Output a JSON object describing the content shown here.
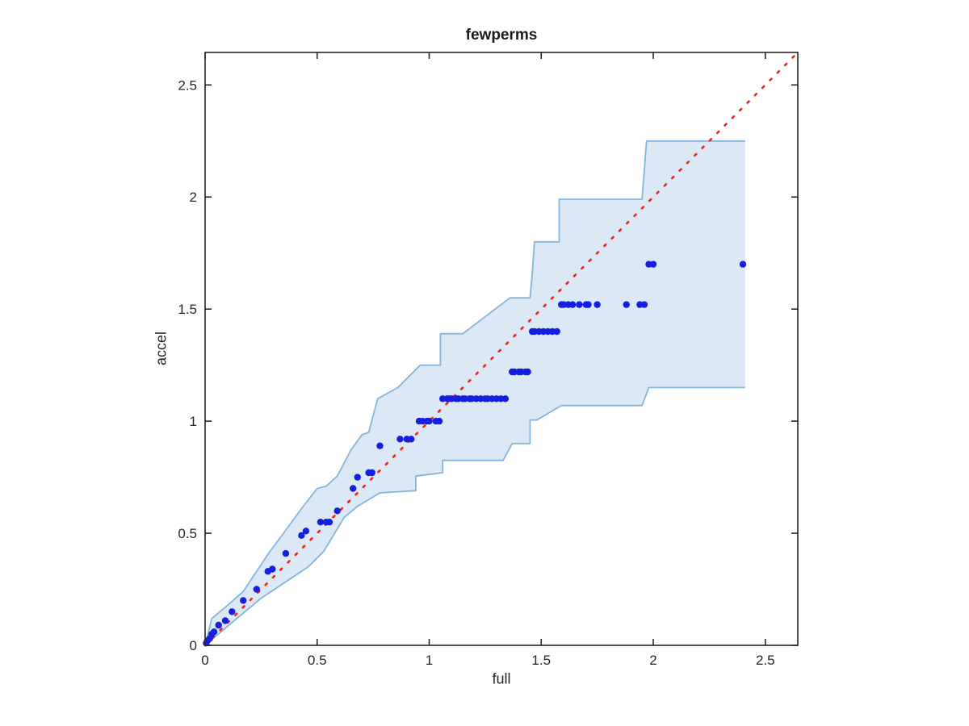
{
  "figure": {
    "title": "fewperms",
    "xlabel": "full",
    "ylabel": "accel"
  },
  "chart_data": {
    "type": "scatter",
    "title": "fewperms",
    "xlabel": "full",
    "ylabel": "accel",
    "xlim": [
      0,
      2.645
    ],
    "ylim": [
      0,
      2.645
    ],
    "xticks": [
      0,
      0.5,
      1,
      1.5,
      2,
      2.5
    ],
    "xtick_labels": [
      "0",
      "0.5",
      "1",
      "1.5",
      "2",
      "2.5"
    ],
    "yticks": [
      0,
      0.5,
      1,
      1.5,
      2,
      2.5
    ],
    "ytick_labels": [
      "0",
      "0.5",
      "1",
      "1.5",
      "2",
      "2.5"
    ],
    "grid": false,
    "legend": null,
    "colors": {
      "scatter": "#1420dd",
      "reference_line": "#f52015",
      "band_fill": "#dbe8f5",
      "band_edge": "#85b5d9",
      "axis": "#262626",
      "text": "#262626",
      "background": "#ffffff"
    },
    "reference_line": {
      "description": "identity line y = x, red dotted",
      "style": "dotted",
      "from": [
        0,
        0
      ],
      "to": [
        2.645,
        2.645
      ]
    },
    "band": {
      "description": "stepped light-blue confidence region around identity line",
      "upper": [
        [
          0,
          0
        ],
        [
          0.03,
          0.12
        ],
        [
          0.09,
          0.17
        ],
        [
          0.17,
          0.24
        ],
        [
          0.23,
          0.33
        ],
        [
          0.29,
          0.42
        ],
        [
          0.35,
          0.5
        ],
        [
          0.43,
          0.61
        ],
        [
          0.5,
          0.7
        ],
        [
          0.54,
          0.71
        ],
        [
          0.59,
          0.755
        ],
        [
          0.65,
          0.87
        ],
        [
          0.7,
          0.94
        ],
        [
          0.73,
          0.95
        ],
        [
          0.77,
          1.1
        ],
        [
          0.86,
          1.15
        ],
        [
          0.96,
          1.25
        ],
        [
          1.05,
          1.25
        ],
        [
          1.05,
          1.39
        ],
        [
          1.15,
          1.39
        ],
        [
          1.36,
          1.55
        ],
        [
          1.45,
          1.55
        ],
        [
          1.46,
          1.66
        ],
        [
          1.47,
          1.8
        ],
        [
          1.58,
          1.8
        ],
        [
          1.58,
          1.99
        ],
        [
          1.95,
          1.99
        ],
        [
          1.97,
          2.25
        ],
        [
          2.41,
          2.25
        ]
      ],
      "lower": [
        [
          0,
          0
        ],
        [
          0.13,
          0.11
        ],
        [
          0.25,
          0.21
        ],
        [
          0.37,
          0.29
        ],
        [
          0.46,
          0.35
        ],
        [
          0.53,
          0.42
        ],
        [
          0.62,
          0.57
        ],
        [
          0.68,
          0.62
        ],
        [
          0.78,
          0.68
        ],
        [
          0.94,
          0.69
        ],
        [
          0.94,
          0.755
        ],
        [
          1.06,
          0.77
        ],
        [
          1.06,
          0.825
        ],
        [
          1.33,
          0.825
        ],
        [
          1.37,
          0.9
        ],
        [
          1.45,
          0.9
        ],
        [
          1.45,
          1.005
        ],
        [
          1.48,
          1.005
        ],
        [
          1.59,
          1.07
        ],
        [
          1.95,
          1.07
        ],
        [
          1.98,
          1.15
        ],
        [
          2.41,
          1.15
        ]
      ]
    },
    "series": [
      {
        "name": "accel vs full",
        "marker": "dot",
        "points": [
          [
            0.005,
            0.01
          ],
          [
            0.01,
            0.02
          ],
          [
            0.02,
            0.03
          ],
          [
            0.03,
            0.05
          ],
          [
            0.04,
            0.06
          ],
          [
            0.06,
            0.09
          ],
          [
            0.09,
            0.11
          ],
          [
            0.12,
            0.15
          ],
          [
            0.17,
            0.2
          ],
          [
            0.23,
            0.25
          ],
          [
            0.28,
            0.33
          ],
          [
            0.3,
            0.34
          ],
          [
            0.36,
            0.41
          ],
          [
            0.43,
            0.49
          ],
          [
            0.45,
            0.51
          ],
          [
            0.515,
            0.55
          ],
          [
            0.54,
            0.55
          ],
          [
            0.555,
            0.55
          ],
          [
            0.59,
            0.6
          ],
          [
            0.66,
            0.7
          ],
          [
            0.68,
            0.75
          ],
          [
            0.73,
            0.77
          ],
          [
            0.745,
            0.77
          ],
          [
            0.78,
            0.89
          ],
          [
            0.87,
            0.92
          ],
          [
            0.9,
            0.92
          ],
          [
            0.92,
            0.92
          ],
          [
            0.955,
            1.0
          ],
          [
            0.97,
            1.0
          ],
          [
            0.99,
            1.0
          ],
          [
            1.0,
            1.0
          ],
          [
            1.03,
            1.0
          ],
          [
            1.045,
            1.0
          ],
          [
            1.06,
            1.1
          ],
          [
            1.08,
            1.1
          ],
          [
            1.09,
            1.1
          ],
          [
            1.1,
            1.1
          ],
          [
            1.12,
            1.1
          ],
          [
            1.13,
            1.1
          ],
          [
            1.15,
            1.1
          ],
          [
            1.16,
            1.1
          ],
          [
            1.18,
            1.1
          ],
          [
            1.19,
            1.1
          ],
          [
            1.21,
            1.1
          ],
          [
            1.23,
            1.1
          ],
          [
            1.25,
            1.1
          ],
          [
            1.26,
            1.1
          ],
          [
            1.28,
            1.1
          ],
          [
            1.3,
            1.1
          ],
          [
            1.32,
            1.1
          ],
          [
            1.34,
            1.1
          ],
          [
            1.37,
            1.22
          ],
          [
            1.38,
            1.22
          ],
          [
            1.4,
            1.22
          ],
          [
            1.41,
            1.22
          ],
          [
            1.43,
            1.22
          ],
          [
            1.44,
            1.22
          ],
          [
            1.46,
            1.4
          ],
          [
            1.47,
            1.4
          ],
          [
            1.49,
            1.4
          ],
          [
            1.51,
            1.4
          ],
          [
            1.53,
            1.4
          ],
          [
            1.55,
            1.4
          ],
          [
            1.57,
            1.4
          ],
          [
            1.59,
            1.52
          ],
          [
            1.6,
            1.52
          ],
          [
            1.62,
            1.52
          ],
          [
            1.64,
            1.52
          ],
          [
            1.67,
            1.52
          ],
          [
            1.7,
            1.52
          ],
          [
            1.71,
            1.52
          ],
          [
            1.75,
            1.52
          ],
          [
            1.88,
            1.52
          ],
          [
            1.94,
            1.52
          ],
          [
            1.96,
            1.52
          ],
          [
            1.98,
            1.7
          ],
          [
            2.0,
            1.7
          ],
          [
            2.4,
            1.7
          ]
        ]
      }
    ]
  }
}
